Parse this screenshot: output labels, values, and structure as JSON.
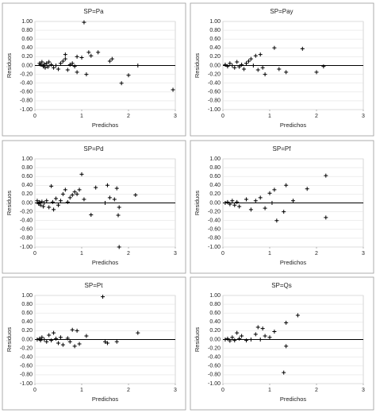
{
  "chart_data": [
    {
      "type": "scatter",
      "title": "SP=Pa",
      "x_label": "Predichos",
      "y_label": "Residuos",
      "color": "#000000",
      "grid": true,
      "xlim": [
        0,
        3
      ],
      "xticks": [
        0,
        1,
        2,
        3
      ],
      "ylim": [
        -1,
        1
      ],
      "yticks": [
        {
          "value": 1,
          "label": "1.00"
        },
        {
          "value": 0.8,
          "label": "0.80"
        },
        {
          "value": 0.6,
          "label": "0.60"
        },
        {
          "value": 0.4,
          "label": "0.40"
        },
        {
          "value": 0.2,
          "label": "0.20"
        },
        {
          "value": 0,
          "label": "0.00"
        },
        {
          "value": -0.2,
          "label": "-0.20"
        },
        {
          "value": -0.4,
          "label": "-0.40"
        },
        {
          "value": -0.6,
          "label": "-0.60"
        },
        {
          "value": -0.8,
          "label": "-0.80"
        },
        {
          "value": -1,
          "label": "-1.00"
        }
      ],
      "x": [
        1.05,
        0.1,
        0.12,
        0.15,
        0.18,
        0.2,
        0.22,
        0.25,
        0.28,
        0.3,
        0.35,
        0.4,
        0.45,
        0.5,
        0.55,
        0.6,
        0.65,
        0.65,
        0.7,
        0.75,
        0.8,
        0.85,
        0.9,
        0.9,
        1.0,
        1.1,
        1.15,
        1.2,
        1.35,
        1.6,
        1.65,
        1.85,
        2.0,
        2.2,
        2.95
      ],
      "values": [
        0.98,
        0.05,
        0.02,
        0.08,
        -0.02,
        0.03,
        -0.05,
        0.05,
        -0.03,
        0.08,
        0.02,
        -0.05,
        0.0,
        -0.08,
        0.05,
        0.1,
        0.15,
        0.25,
        -0.1,
        0.02,
        0.05,
        -0.02,
        0.2,
        -0.15,
        0.18,
        -0.2,
        0.3,
        0.22,
        0.3,
        0.1,
        0.15,
        -0.4,
        -0.22,
        0.0,
        -0.55
      ]
    },
    {
      "type": "scatter",
      "title": "SP=Pay",
      "x_label": "Predichos",
      "y_label": "Residuos",
      "color": "#000000",
      "grid": true,
      "xlim": [
        0,
        3
      ],
      "xticks": [
        0,
        1,
        2,
        3
      ],
      "ylim": [
        -1,
        1
      ],
      "yticks": [
        {
          "value": 1,
          "label": "1.00"
        },
        {
          "value": 0.8,
          "label": "0.80"
        },
        {
          "value": 0.6,
          "label": "0.60"
        },
        {
          "value": 0.4,
          "label": "0.40"
        },
        {
          "value": 0.2,
          "label": "0.20"
        },
        {
          "value": 0,
          "label": "0.00"
        },
        {
          "value": -0.2,
          "label": "-0.20"
        },
        {
          "value": -0.4,
          "label": "-0.40"
        },
        {
          "value": -0.6,
          "label": "-0.60"
        },
        {
          "value": -0.8,
          "label": "-0.80"
        },
        {
          "value": -1,
          "label": "-1.00"
        }
      ],
      "x": [
        0.05,
        0.1,
        0.15,
        0.2,
        0.25,
        0.3,
        0.35,
        0.4,
        0.45,
        0.5,
        0.55,
        0.6,
        0.65,
        0.7,
        0.75,
        0.8,
        0.85,
        0.9,
        1.1,
        1.2,
        1.35,
        1.7,
        2.0,
        2.15
      ],
      "values": [
        0.02,
        -0.02,
        0.05,
        0.0,
        -0.05,
        0.08,
        -0.03,
        0.02,
        -0.08,
        0.05,
        0.1,
        0.15,
        0.0,
        0.22,
        -0.1,
        0.25,
        -0.05,
        -0.2,
        0.4,
        -0.08,
        -0.15,
        0.38,
        -0.15,
        -0.02
      ]
    },
    {
      "type": "scatter",
      "title": "SP=Pd",
      "x_label": "Predichos",
      "y_label": "Residuos",
      "color": "#000000",
      "grid": true,
      "xlim": [
        0,
        3
      ],
      "xticks": [
        0,
        1,
        2,
        3
      ],
      "ylim": [
        -1,
        1
      ],
      "yticks": [
        {
          "value": 1,
          "label": "1.00"
        },
        {
          "value": 0.8,
          "label": "0.80"
        },
        {
          "value": 0.6,
          "label": "0.60"
        },
        {
          "value": 0.4,
          "label": "0.40"
        },
        {
          "value": 0.2,
          "label": "0.20"
        },
        {
          "value": 0,
          "label": "0.00"
        },
        {
          "value": -0.2,
          "label": "-0.20"
        },
        {
          "value": -0.4,
          "label": "-0.40"
        },
        {
          "value": -0.6,
          "label": "-0.60"
        },
        {
          "value": -0.8,
          "label": "-0.80"
        },
        {
          "value": -1,
          "label": "-1.00"
        }
      ],
      "x": [
        0.05,
        0.08,
        0.1,
        0.12,
        0.15,
        0.18,
        0.2,
        0.25,
        0.3,
        0.35,
        0.38,
        0.4,
        0.45,
        0.5,
        0.55,
        0.6,
        0.65,
        0.7,
        0.75,
        0.8,
        0.85,
        0.9,
        0.95,
        1.0,
        1.05,
        1.2,
        1.3,
        1.5,
        1.55,
        1.6,
        1.7,
        1.75,
        1.78,
        1.8,
        1.8,
        2.15
      ],
      "values": [
        0.05,
        -0.02,
        0.02,
        -0.05,
        0.03,
        -0.08,
        0.0,
        0.05,
        -0.1,
        0.38,
        0.02,
        -0.15,
        0.1,
        -0.05,
        0.05,
        0.2,
        0.3,
        0.02,
        0.12,
        0.18,
        0.25,
        0.2,
        0.3,
        0.65,
        0.08,
        -0.27,
        0.35,
        0.0,
        0.4,
        0.12,
        0.08,
        0.33,
        -0.28,
        -0.1,
        -1.0,
        0.18
      ]
    },
    {
      "type": "scatter",
      "title": "SP=Pf",
      "x_label": "Predichos",
      "y_label": "Residuos",
      "color": "#000000",
      "grid": true,
      "xlim": [
        0,
        3
      ],
      "xticks": [
        0,
        1,
        2,
        3
      ],
      "ylim": [
        -1,
        1
      ],
      "yticks": [
        {
          "value": 1,
          "label": "1.00"
        },
        {
          "value": 0.8,
          "label": "0.80"
        },
        {
          "value": 0.6,
          "label": "0.60"
        },
        {
          "value": 0.4,
          "label": "0.40"
        },
        {
          "value": 0.2,
          "label": "0.20"
        },
        {
          "value": 0,
          "label": "0.00"
        },
        {
          "value": -0.2,
          "label": "-0.20"
        },
        {
          "value": -0.4,
          "label": "-0.40"
        },
        {
          "value": -0.6,
          "label": "-0.60"
        },
        {
          "value": -0.8,
          "label": "-0.80"
        },
        {
          "value": -1,
          "label": "-1.00"
        }
      ],
      "x": [
        0.05,
        0.1,
        0.15,
        0.2,
        0.25,
        0.3,
        0.35,
        0.5,
        0.6,
        0.7,
        0.8,
        0.9,
        1.0,
        1.05,
        1.1,
        1.15,
        1.3,
        1.35,
        1.5,
        1.8,
        2.2,
        2.2
      ],
      "values": [
        0.0,
        0.02,
        -0.03,
        0.05,
        -0.05,
        0.02,
        -0.08,
        0.08,
        -0.15,
        0.05,
        0.12,
        -0.12,
        0.22,
        0.0,
        0.3,
        -0.4,
        -0.2,
        0.4,
        0.05,
        0.32,
        0.62,
        -0.33
      ]
    },
    {
      "type": "scatter",
      "title": "SP=Pt",
      "x_label": "Predichos",
      "y_label": "Residuos",
      "color": "#000000",
      "grid": true,
      "xlim": [
        0,
        3
      ],
      "xticks": [
        0,
        1,
        2,
        3
      ],
      "ylim": [
        -1,
        1
      ],
      "yticks": [
        {
          "value": 1,
          "label": "1.00"
        },
        {
          "value": 0.8,
          "label": "0.80"
        },
        {
          "value": 0.6,
          "label": "0.60"
        },
        {
          "value": 0.4,
          "label": "0.40"
        },
        {
          "value": 0.2,
          "label": "0.20"
        },
        {
          "value": 0,
          "label": "0.00"
        },
        {
          "value": -0.2,
          "label": "-0.20"
        },
        {
          "value": -0.4,
          "label": "-0.40"
        },
        {
          "value": -0.6,
          "label": "-0.60"
        },
        {
          "value": -0.8,
          "label": "-0.80"
        },
        {
          "value": -1,
          "label": "-1.00"
        }
      ],
      "x": [
        0.05,
        0.1,
        0.12,
        0.15,
        0.2,
        0.25,
        0.3,
        0.35,
        0.4,
        0.45,
        0.5,
        0.55,
        0.6,
        0.7,
        0.75,
        0.8,
        0.85,
        0.9,
        0.95,
        1.1,
        1.45,
        1.5,
        1.55,
        1.75,
        2.2
      ],
      "values": [
        0.0,
        0.02,
        -0.02,
        0.05,
        0.0,
        -0.05,
        0.1,
        -0.02,
        0.15,
        0.02,
        -0.08,
        0.05,
        -0.12,
        0.03,
        -0.05,
        0.22,
        -0.15,
        0.2,
        -0.1,
        0.08,
        0.97,
        -0.05,
        -0.08,
        -0.05,
        0.15
      ]
    },
    {
      "type": "scatter",
      "title": "SP=Qs",
      "x_label": "Predichos",
      "y_label": "Residuos",
      "color": "#000000",
      "grid": true,
      "xlim": [
        0,
        3
      ],
      "xticks": [
        0,
        1,
        2,
        3
      ],
      "ylim": [
        -1,
        1
      ],
      "yticks": [
        {
          "value": 1,
          "label": "1.00"
        },
        {
          "value": 0.8,
          "label": "0.80"
        },
        {
          "value": 0.6,
          "label": "0.60"
        },
        {
          "value": 0.4,
          "label": "0.40"
        },
        {
          "value": 0.2,
          "label": "0.20"
        },
        {
          "value": 0,
          "label": "0.00"
        },
        {
          "value": -0.2,
          "label": "-0.20"
        },
        {
          "value": -0.4,
          "label": "-0.40"
        },
        {
          "value": -0.6,
          "label": "-0.60"
        },
        {
          "value": -0.8,
          "label": "-0.80"
        },
        {
          "value": -1,
          "label": "-1.00"
        }
      ],
      "x": [
        0.05,
        0.1,
        0.15,
        0.2,
        0.25,
        0.3,
        0.35,
        0.4,
        0.5,
        0.6,
        0.7,
        0.75,
        0.8,
        0.85,
        0.9,
        1.0,
        1.1,
        1.3,
        1.35,
        1.35,
        1.6
      ],
      "values": [
        0.0,
        0.02,
        -0.03,
        0.05,
        -0.02,
        0.15,
        0.02,
        0.08,
        -0.02,
        0.0,
        0.12,
        0.28,
        0.0,
        0.25,
        0.08,
        0.05,
        0.18,
        -0.75,
        0.38,
        -0.15,
        0.55
      ]
    }
  ]
}
